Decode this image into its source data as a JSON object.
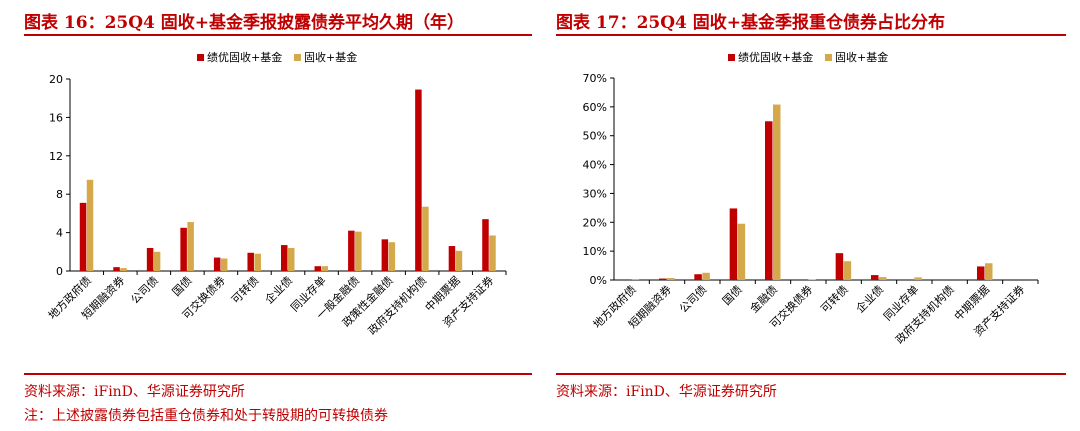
{
  "left": {
    "title": "图表 16：25Q4 固收+基金季报披露债券平均久期（年）",
    "source": "资料来源：iFinD、华源证券研究所",
    "note": "注：上述披露债券包括重仓债券和处于转股期的可转换债券"
  },
  "right": {
    "title": "图表 17：25Q4 固收+基金季报重仓债券占比分布",
    "source": "资料来源：iFinD、华源证券研究所"
  },
  "colors": {
    "series1": "#c00000",
    "series2": "#d4a84b",
    "accent": "#c00000"
  },
  "chart_data": [
    {
      "type": "bar",
      "categories": [
        "地方政府债",
        "短期融资券",
        "公司债",
        "国债",
        "可交换债券",
        "可转债",
        "企业债",
        "同业存单",
        "一般金融债",
        "政策性金融债",
        "政府支持机构债",
        "中期票据",
        "资产支持证券"
      ],
      "series": [
        {
          "name": "绩优固收+基金",
          "values": [
            7.1,
            0.4,
            2.4,
            4.5,
            1.4,
            1.9,
            2.7,
            0.5,
            4.2,
            3.3,
            18.9,
            2.6,
            5.4
          ]
        },
        {
          "name": "固收+基金",
          "values": [
            9.5,
            0.3,
            2.0,
            5.1,
            1.3,
            1.8,
            2.4,
            0.5,
            4.1,
            3.0,
            6.7,
            2.1,
            3.7
          ]
        }
      ],
      "ylim": [
        0,
        20
      ],
      "yticks": [
        "0",
        "4",
        "8",
        "12",
        "16",
        "20"
      ],
      "legend": "top-center"
    },
    {
      "type": "bar",
      "categories": [
        "地方政府债",
        "短期融资券",
        "公司债",
        "国债",
        "金融债",
        "可交换债券",
        "可转债",
        "企业债",
        "同业存单",
        "政府支持机构债",
        "中期票据",
        "资产支持证券"
      ],
      "series": [
        {
          "name": "绩优固收+基金",
          "values": [
            0,
            0.5,
            2.0,
            24.8,
            55.0,
            0,
            9.3,
            1.7,
            0,
            0,
            4.7,
            0
          ]
        },
        {
          "name": "固收+基金",
          "values": [
            0.3,
            0.7,
            2.5,
            19.5,
            60.8,
            0.2,
            6.5,
            1.0,
            0.9,
            0,
            5.8,
            0
          ]
        }
      ],
      "ylim": [
        0,
        70
      ],
      "yticks": [
        "0%",
        "10%",
        "20%",
        "30%",
        "40%",
        "50%",
        "60%",
        "70%"
      ],
      "legend": "top-center"
    }
  ]
}
